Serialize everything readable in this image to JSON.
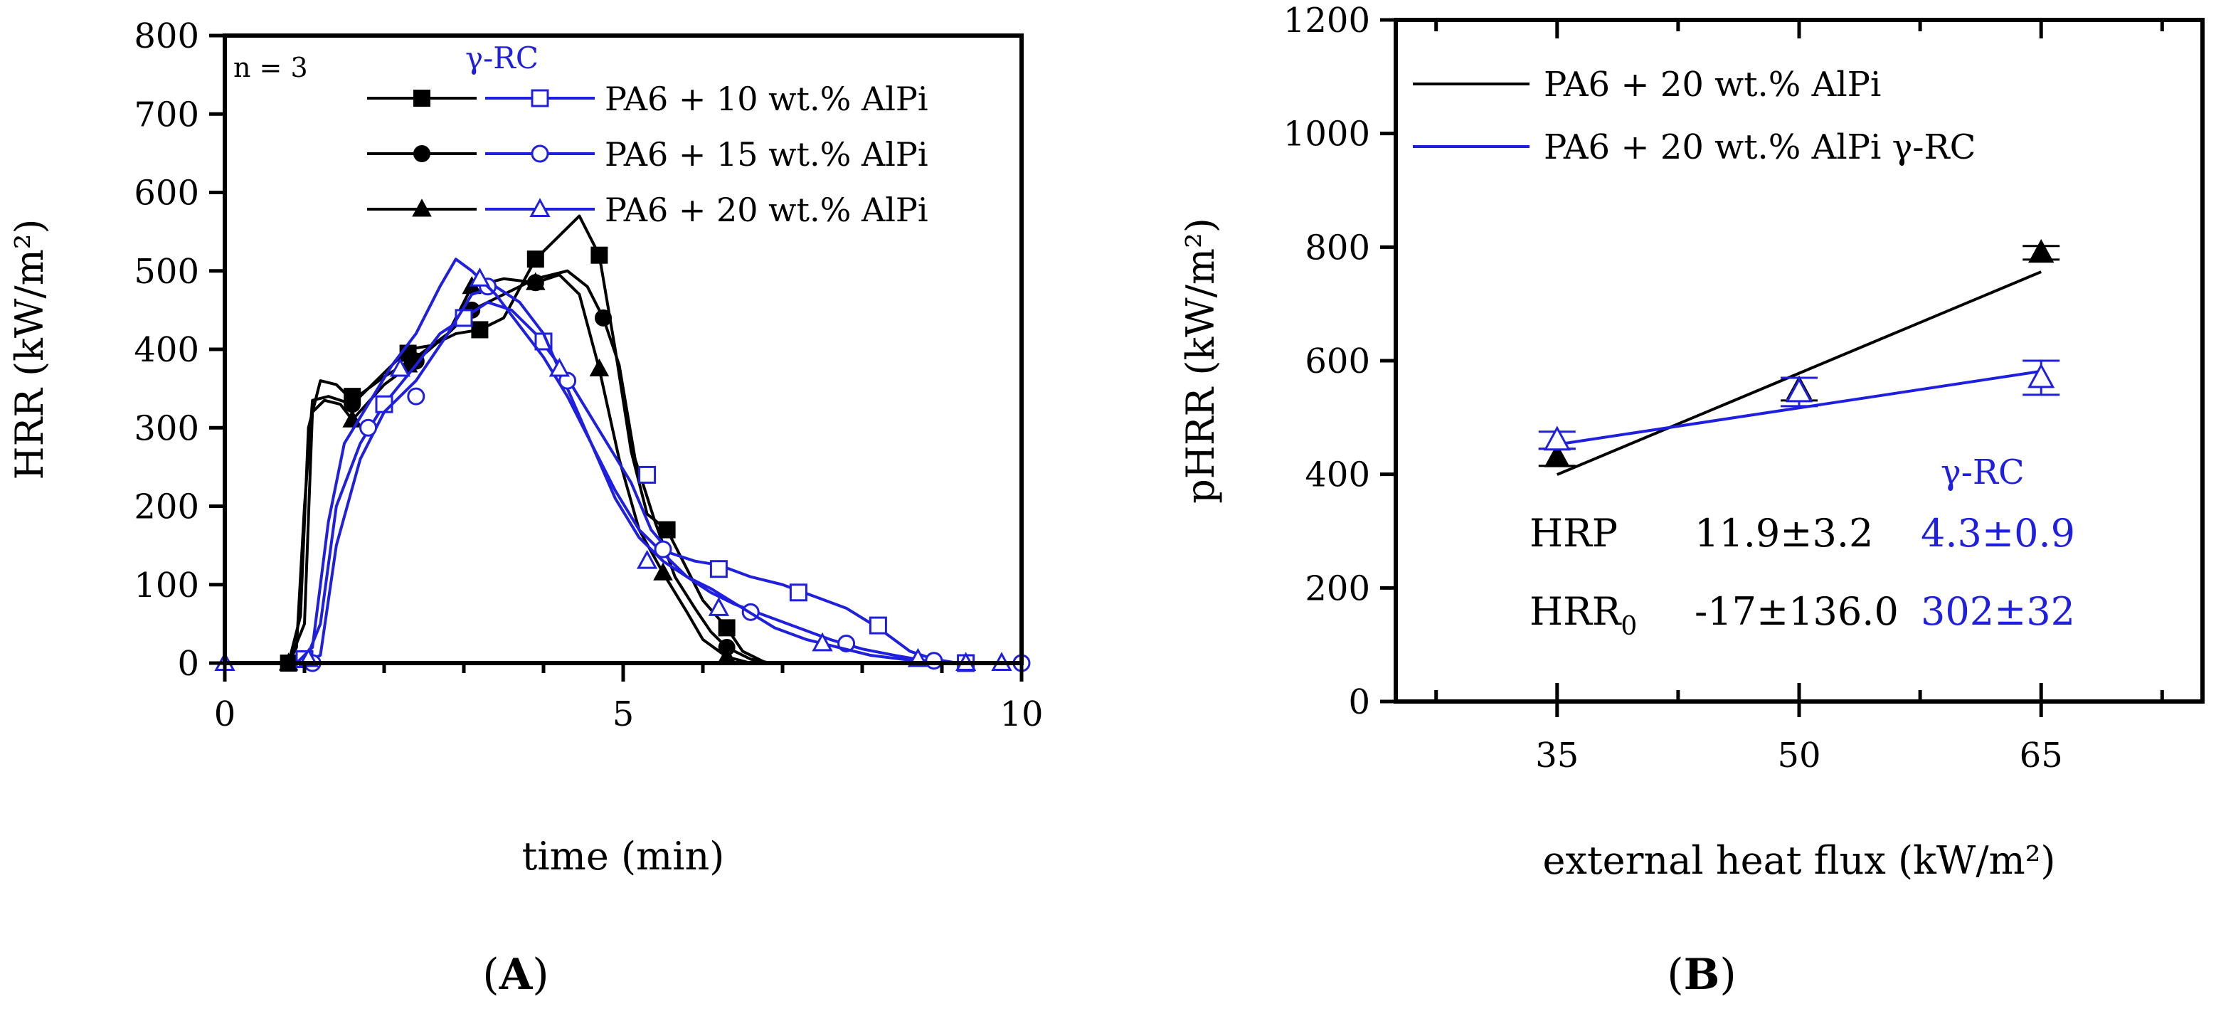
{
  "colors": {
    "black": "#000000",
    "blue": "#1f1fe0"
  },
  "panelA": {
    "panel_label": "A",
    "annotation": "n = 3",
    "legend_header": "γ-RC"
  },
  "panelB": {
    "panel_label": "B",
    "table_header": "γ-RC",
    "stats": {
      "hrp_label": "HRP",
      "hrp_black": "11.9±3.2",
      "hrp_blue": "4.3±0.9",
      "hrr0_label": "HRR",
      "hrr0_sub": "0",
      "hrr0_black": "-17±136.0",
      "hrr0_blue": "302±32"
    }
  },
  "chart_data": [
    {
      "type": "line",
      "title": "",
      "xlabel": "time (min)",
      "ylabel": "HRR (kW/m²)",
      "xlim": [
        0,
        10
      ],
      "ylim": [
        0,
        800
      ],
      "xticks": [
        0,
        5,
        10
      ],
      "yticks": [
        0,
        100,
        200,
        300,
        400,
        500,
        600,
        700,
        800
      ],
      "legend_position": "top-right",
      "series": [
        {
          "name": "PA6 + 10 wt.% AlPi",
          "color": "#000000",
          "marker": "square",
          "fill": "filled",
          "x": [
            0,
            0.8,
            0.9,
            1.0,
            1.1,
            1.3,
            1.6,
            2.0,
            2.3,
            2.6,
            2.9,
            3.2,
            3.5,
            3.9,
            4.2,
            4.45,
            4.7,
            4.9,
            5.1,
            5.3,
            5.55,
            5.8,
            6.0,
            6.3,
            6.5,
            6.8
          ],
          "y": [
            0,
            0,
            20,
            200,
            335,
            340,
            330,
            370,
            400,
            405,
            420,
            425,
            440,
            515,
            545,
            570,
            520,
            400,
            270,
            190,
            170,
            120,
            80,
            45,
            15,
            0
          ],
          "marker_x": [
            0.8,
            1.6,
            2.3,
            3.2,
            3.9,
            4.7,
            5.55,
            6.3
          ],
          "marker_y": [
            0,
            340,
            395,
            425,
            515,
            520,
            170,
            45
          ]
        },
        {
          "name": "PA6 + 15 wt.% AlPi",
          "color": "#000000",
          "marker": "circle",
          "fill": "filled",
          "x": [
            0,
            0.8,
            0.95,
            1.05,
            1.2,
            1.4,
            1.6,
            2.0,
            2.4,
            2.8,
            3.1,
            3.5,
            3.9,
            4.3,
            4.55,
            4.75,
            4.95,
            5.15,
            5.4,
            5.65,
            5.9,
            6.1,
            6.3,
            6.6,
            6.85
          ],
          "y": [
            0,
            0,
            60,
            300,
            360,
            355,
            335,
            365,
            390,
            420,
            450,
            470,
            490,
            500,
            480,
            440,
            380,
            260,
            180,
            110,
            70,
            40,
            20,
            5,
            0
          ],
          "marker_x": [
            0.8,
            1.6,
            2.4,
            3.1,
            3.9,
            4.75,
            5.5,
            6.3
          ],
          "marker_y": [
            0,
            330,
            385,
            450,
            485,
            440,
            145,
            20
          ]
        },
        {
          "name": "PA6 + 20 wt.% AlPi",
          "color": "#000000",
          "marker": "triangle",
          "fill": "filled",
          "x": [
            0,
            0.8,
            1.0,
            1.1,
            1.25,
            1.45,
            1.6,
            2.0,
            2.4,
            2.8,
            3.1,
            3.5,
            3.9,
            4.2,
            4.45,
            4.7,
            4.95,
            5.2,
            5.5,
            5.8,
            6.0,
            6.3,
            6.6
          ],
          "y": [
            0,
            0,
            50,
            320,
            335,
            330,
            310,
            355,
            385,
            420,
            480,
            490,
            485,
            495,
            470,
            375,
            260,
            170,
            115,
            65,
            30,
            8,
            0
          ],
          "marker_x": [
            0.8,
            1.6,
            2.3,
            3.1,
            3.9,
            4.7,
            5.5,
            6.3
          ],
          "marker_y": [
            0,
            310,
            380,
            480,
            485,
            375,
            115,
            8
          ]
        },
        {
          "name": "PA6 + 10 wt.% AlPi γ-RC",
          "color": "#1f1fe0",
          "marker": "square",
          "fill": "open",
          "x": [
            0,
            1.0,
            1.2,
            1.4,
            1.7,
            2.0,
            2.4,
            2.7,
            3.0,
            3.3,
            3.6,
            3.9,
            4.2,
            4.5,
            4.8,
            5.1,
            5.35,
            5.6,
            5.9,
            6.2,
            6.6,
            7.0,
            7.4,
            7.8,
            8.2,
            8.6,
            8.9,
            9.2,
            9.6,
            10.0
          ],
          "y": [
            0,
            0,
            50,
            200,
            280,
            330,
            380,
            420,
            440,
            460,
            450,
            420,
            380,
            330,
            280,
            230,
            170,
            140,
            130,
            125,
            110,
            100,
            85,
            70,
            45,
            15,
            5,
            0,
            0,
            0
          ],
          "marker_x": [
            1.0,
            2.0,
            3.0,
            4.0,
            5.3,
            6.2,
            7.2,
            8.2,
            9.3
          ],
          "marker_y": [
            5,
            330,
            440,
            410,
            240,
            120,
            90,
            48,
            0
          ]
        },
        {
          "name": "PA6 + 15 wt.% AlPi γ-RC",
          "color": "#1f1fe0",
          "marker": "circle",
          "fill": "open",
          "x": [
            0,
            1.0,
            1.2,
            1.4,
            1.7,
            2.0,
            2.4,
            2.8,
            3.1,
            3.4,
            3.7,
            4.0,
            4.3,
            4.6,
            4.9,
            5.2,
            5.5,
            5.8,
            6.1,
            6.4,
            6.8,
            7.2,
            7.6,
            8.0,
            8.4,
            8.8,
            9.2,
            10.0
          ],
          "y": [
            0,
            0,
            10,
            150,
            260,
            320,
            360,
            420,
            470,
            480,
            460,
            420,
            350,
            280,
            220,
            170,
            140,
            110,
            90,
            75,
            60,
            45,
            30,
            18,
            10,
            3,
            0,
            0
          ],
          "marker_x": [
            1.1,
            1.8,
            2.4,
            3.3,
            4.3,
            5.5,
            6.6,
            7.8,
            8.9,
            10.0
          ],
          "marker_y": [
            0,
            300,
            340,
            480,
            360,
            145,
            65,
            25,
            3,
            0
          ]
        },
        {
          "name": "PA6 + 20 wt.% AlPi γ-RC",
          "color": "#1f1fe0",
          "marker": "triangle",
          "fill": "open",
          "x": [
            0,
            0.9,
            1.1,
            1.3,
            1.5,
            1.8,
            2.1,
            2.4,
            2.7,
            2.9,
            3.1,
            3.4,
            3.7,
            4.0,
            4.3,
            4.6,
            4.9,
            5.2,
            5.5,
            5.8,
            6.1,
            6.5,
            6.9,
            7.3,
            7.7,
            8.1,
            8.5,
            8.9,
            9.3,
            9.7
          ],
          "y": [
            0,
            0,
            20,
            180,
            280,
            330,
            380,
            420,
            480,
            515,
            500,
            470,
            430,
            390,
            340,
            280,
            210,
            160,
            130,
            110,
            95,
            70,
            45,
            30,
            20,
            10,
            5,
            0,
            0,
            0
          ],
          "marker_x": [
            0,
            1.05,
            2.2,
            3.2,
            4.2,
            5.3,
            6.2,
            7.5,
            8.7,
            9.3,
            9.75
          ],
          "marker_y": [
            0,
            5,
            375,
            490,
            375,
            130,
            70,
            25,
            5,
            0,
            0
          ]
        }
      ]
    },
    {
      "type": "scatter",
      "title": "",
      "xlabel": "external heat flux (kW/m²)",
      "ylabel": "pHRR (kW/m²)",
      "xlim": [
        25,
        75
      ],
      "ylim": [
        0,
        1200
      ],
      "xticks": [
        35,
        50,
        65
      ],
      "yticks": [
        0,
        200,
        400,
        600,
        800,
        1000,
        1200
      ],
      "legend_position": "top-left",
      "series": [
        {
          "name": "PA6 + 20 wt.% AlPi",
          "color": "#000000",
          "marker": "triangle",
          "fill": "filled",
          "x": [
            35,
            50,
            65
          ],
          "y": [
            430,
            550,
            790
          ],
          "err": [
            15,
            20,
            12
          ],
          "fit": {
            "slope": 11.9,
            "intercept": -17,
            "x_range": [
              35,
              65
            ]
          }
        },
        {
          "name": "PA6 + 20 wt.% AlPi γ-RC",
          "color": "#1f1fe0",
          "marker": "triangle",
          "fill": "open",
          "x": [
            35,
            50,
            65
          ],
          "y": [
            460,
            545,
            570
          ],
          "err": [
            15,
            25,
            30
          ],
          "fit": {
            "slope": 4.3,
            "intercept": 302,
            "x_range": [
              35,
              65
            ]
          }
        }
      ]
    }
  ]
}
